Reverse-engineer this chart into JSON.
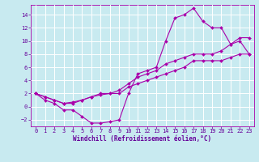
{
  "bg_color": "#c8eaf0",
  "line_color": "#aa00aa",
  "grid_color": "#ffffff",
  "xlabel": "Windchill (Refroidissement éolien,°C)",
  "xlabel_color": "#660099",
  "tick_color": "#660099",
  "ylim": [
    -3.0,
    15.5
  ],
  "xlim": [
    -0.5,
    23.5
  ],
  "yticks": [
    -2,
    0,
    2,
    4,
    6,
    8,
    10,
    12,
    14
  ],
  "xticks": [
    0,
    1,
    2,
    3,
    4,
    5,
    6,
    7,
    8,
    9,
    10,
    11,
    12,
    13,
    14,
    15,
    16,
    17,
    18,
    19,
    20,
    21,
    22,
    23
  ],
  "curve1_x": [
    0,
    1,
    2,
    3,
    4,
    5,
    6,
    7,
    8,
    9,
    10,
    11,
    12,
    13,
    14,
    15,
    16,
    17,
    18,
    19,
    20,
    21,
    22,
    23
  ],
  "curve1_y": [
    2.0,
    1.0,
    0.5,
    -0.5,
    -0.5,
    -1.5,
    -2.5,
    -2.5,
    -2.3,
    -2.0,
    2.0,
    5.0,
    5.5,
    6.0,
    10.0,
    13.5,
    14.0,
    15.0,
    13.0,
    12.0,
    12.0,
    9.5,
    10.0,
    8.0
  ],
  "curve2_x": [
    0,
    1,
    2,
    3,
    4,
    5,
    6,
    7,
    8,
    9,
    10,
    11,
    12,
    13,
    14,
    15,
    16,
    17,
    18,
    19,
    20,
    21,
    22,
    23
  ],
  "curve2_y": [
    2.0,
    1.5,
    1.0,
    0.5,
    0.5,
    1.0,
    1.5,
    2.0,
    2.0,
    2.0,
    3.0,
    3.5,
    4.0,
    4.5,
    5.0,
    5.5,
    6.0,
    7.0,
    7.0,
    7.0,
    7.0,
    7.5,
    8.0,
    8.0
  ],
  "curve3_x": [
    0,
    1,
    2,
    3,
    4,
    5,
    6,
    7,
    8,
    9,
    10,
    11,
    12,
    13,
    14,
    15,
    16,
    17,
    18,
    19,
    20,
    21,
    22,
    23
  ],
  "curve3_y": [
    2.0,
    1.5,
    1.0,
    0.5,
    0.7,
    1.0,
    1.5,
    1.8,
    2.0,
    2.5,
    3.5,
    4.5,
    5.0,
    5.5,
    6.5,
    7.0,
    7.5,
    8.0,
    8.0,
    8.0,
    8.5,
    9.5,
    10.5,
    10.5
  ],
  "lw": 0.8,
  "ms": 2.0,
  "tick_fontsize": 5.0,
  "xlabel_fontsize": 5.5
}
